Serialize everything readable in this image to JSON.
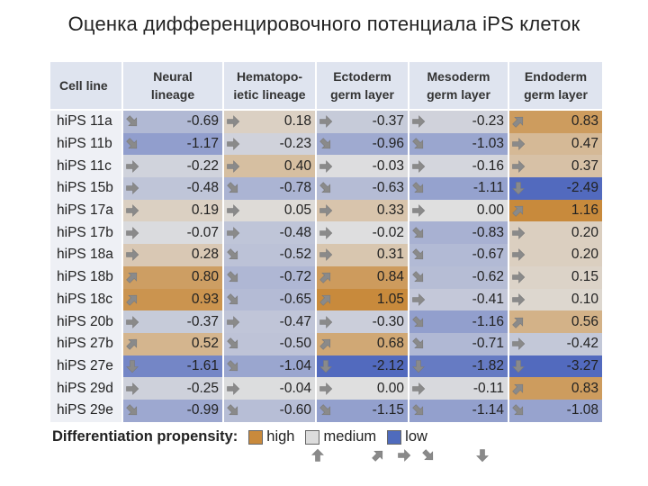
{
  "title": "Оценка дифференцировочного потенциала iPS клеток",
  "table": {
    "columns": [
      {
        "label_1": "Neural",
        "label_2": "lineage"
      },
      {
        "label_1": "Hematopo-",
        "label_2": "ietic lineage"
      },
      {
        "label_1": "Ectoderm",
        "label_2": "germ layer"
      },
      {
        "label_1": "Mesoderm",
        "label_2": "germ layer"
      },
      {
        "label_1": "Endoderm",
        "label_2": "germ layer"
      }
    ],
    "cell_line_header": "Cell line",
    "rows": [
      {
        "name": "hiPS 11a",
        "cells": [
          {
            "v": "-0.69",
            "a": "down-right"
          },
          {
            "v": "0.18",
            "a": "right"
          },
          {
            "v": "-0.37",
            "a": "right"
          },
          {
            "v": "-0.23",
            "a": "right"
          },
          {
            "v": "0.83",
            "a": "up-right"
          }
        ]
      },
      {
        "name": "hiPS 11b",
        "cells": [
          {
            "v": "-1.17",
            "a": "down-right"
          },
          {
            "v": "-0.23",
            "a": "right"
          },
          {
            "v": "-0.96",
            "a": "down-right"
          },
          {
            "v": "-1.03",
            "a": "down-right"
          },
          {
            "v": "0.47",
            "a": "right"
          }
        ]
      },
      {
        "name": "hiPS 11c",
        "cells": [
          {
            "v": "-0.22",
            "a": "right"
          },
          {
            "v": "0.40",
            "a": "right"
          },
          {
            "v": "-0.03",
            "a": "right"
          },
          {
            "v": "-0.16",
            "a": "right"
          },
          {
            "v": "0.37",
            "a": "right"
          }
        ]
      },
      {
        "name": "hiPS 15b",
        "cells": [
          {
            "v": "-0.48",
            "a": "right"
          },
          {
            "v": "-0.78",
            "a": "down-right"
          },
          {
            "v": "-0.63",
            "a": "down-right"
          },
          {
            "v": "-1.11",
            "a": "down-right"
          },
          {
            "v": "-2.49",
            "a": "down"
          }
        ]
      },
      {
        "name": "hiPS 17a",
        "cells": [
          {
            "v": "0.19",
            "a": "right"
          },
          {
            "v": "0.05",
            "a": "right"
          },
          {
            "v": "0.33",
            "a": "right"
          },
          {
            "v": "0.00",
            "a": "right"
          },
          {
            "v": "1.16",
            "a": "up-right"
          }
        ]
      },
      {
        "name": "hiPS 17b",
        "cells": [
          {
            "v": "-0.07",
            "a": "right"
          },
          {
            "v": "-0.48",
            "a": "right"
          },
          {
            "v": "-0.02",
            "a": "right"
          },
          {
            "v": "-0.83",
            "a": "down-right"
          },
          {
            "v": "0.20",
            "a": "right"
          }
        ]
      },
      {
        "name": "hiPS 18a",
        "cells": [
          {
            "v": "0.28",
            "a": "right"
          },
          {
            "v": "-0.52",
            "a": "down-right"
          },
          {
            "v": "0.31",
            "a": "right"
          },
          {
            "v": "-0.67",
            "a": "down-right"
          },
          {
            "v": "0.20",
            "a": "right"
          }
        ]
      },
      {
        "name": "hiPS 18b",
        "cells": [
          {
            "v": "0.80",
            "a": "up-right"
          },
          {
            "v": "-0.72",
            "a": "down-right"
          },
          {
            "v": "0.84",
            "a": "up-right"
          },
          {
            "v": "-0.62",
            "a": "down-right"
          },
          {
            "v": "0.15",
            "a": "right"
          }
        ]
      },
      {
        "name": "hiPS 18c",
        "cells": [
          {
            "v": "0.93",
            "a": "up-right"
          },
          {
            "v": "-0.65",
            "a": "down-right"
          },
          {
            "v": "1.05",
            "a": "up-right"
          },
          {
            "v": "-0.41",
            "a": "right"
          },
          {
            "v": "0.10",
            "a": "right"
          }
        ]
      },
      {
        "name": "hiPS 20b",
        "cells": [
          {
            "v": "-0.37",
            "a": "right"
          },
          {
            "v": "-0.47",
            "a": "right"
          },
          {
            "v": "-0.30",
            "a": "right"
          },
          {
            "v": "-1.16",
            "a": "down-right"
          },
          {
            "v": "0.56",
            "a": "up-right"
          }
        ]
      },
      {
        "name": "hiPS 27b",
        "cells": [
          {
            "v": "0.52",
            "a": "up-right"
          },
          {
            "v": "-0.50",
            "a": "down-right"
          },
          {
            "v": "0.68",
            "a": "up-right"
          },
          {
            "v": "-0.71",
            "a": "down-right"
          },
          {
            "v": "-0.42",
            "a": "right"
          }
        ]
      },
      {
        "name": "hiPS 27e",
        "cells": [
          {
            "v": "-1.61",
            "a": "down"
          },
          {
            "v": "-1.04",
            "a": "down-right"
          },
          {
            "v": "-2.12",
            "a": "down"
          },
          {
            "v": "-1.82",
            "a": "down"
          },
          {
            "v": "-3.27",
            "a": "down"
          }
        ]
      },
      {
        "name": "hiPS 29d",
        "cells": [
          {
            "v": "-0.25",
            "a": "right"
          },
          {
            "v": "-0.04",
            "a": "right"
          },
          {
            "v": "0.00",
            "a": "right"
          },
          {
            "v": "-0.11",
            "a": "right"
          },
          {
            "v": "0.83",
            "a": "up-right"
          }
        ]
      },
      {
        "name": "hiPS 29e",
        "cells": [
          {
            "v": "-0.99",
            "a": "down-right"
          },
          {
            "v": "-0.60",
            "a": "down-right"
          },
          {
            "v": "-1.15",
            "a": "down-right"
          },
          {
            "v": "-1.14",
            "a": "down-right"
          },
          {
            "v": "-1.08",
            "a": "down-right"
          }
        ]
      }
    ]
  },
  "legend": {
    "title": "Differentiation propensity:",
    "high": "high",
    "medium": "medium",
    "low": "low",
    "colors": {
      "high": "#c98a3c",
      "medium": "#dcdcdc",
      "low": "#4f6bbd"
    }
  },
  "colors": {
    "header_bg": "#dfe4ef",
    "first_col_bg": "#eef0f5",
    "arrow": "#8a8a8a"
  }
}
